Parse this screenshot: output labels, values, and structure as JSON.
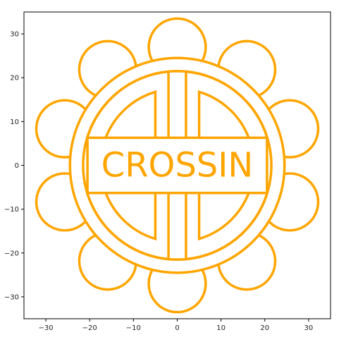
{
  "chart_data": {
    "type": "line",
    "title": "",
    "xlabel": "",
    "ylabel": "",
    "xlim": [
      -35,
      35
    ],
    "ylim": [
      -35,
      35
    ],
    "xticks": [
      -30,
      -20,
      -10,
      0,
      10,
      20,
      30
    ],
    "yticks": [
      -30,
      -20,
      -10,
      0,
      10,
      20,
      30
    ],
    "xtick_labels": [
      "−30",
      "−20",
      "−10",
      "0",
      "10",
      "20",
      "30"
    ],
    "ytick_labels": [
      "−30",
      "−20",
      "−10",
      "0",
      "10",
      "20",
      "30"
    ],
    "grid": false,
    "line_color": "#FFA500",
    "text": "CROSSIN",
    "text_position": [
      0,
      0
    ],
    "outer_circle": {
      "center": [
        0,
        0
      ],
      "radius": 24.5
    },
    "inner_circle": {
      "center": [
        0,
        0
      ],
      "radius": 21.5
    },
    "inner_arc_radius": 17.5,
    "scallops": {
      "count": 10,
      "ring_radius": 27,
      "radius": 6.5
    },
    "text_box": {
      "x": [
        -20.5,
        20.5
      ],
      "y": [
        -6.3,
        6.3
      ]
    },
    "cross_bars": {
      "x_outer": 2,
      "x_inner": 5
    },
    "arc_bar_half_widths": [
      2,
      5
    ],
    "arc_bar_radii": [
      21.5,
      17.5
    ]
  }
}
